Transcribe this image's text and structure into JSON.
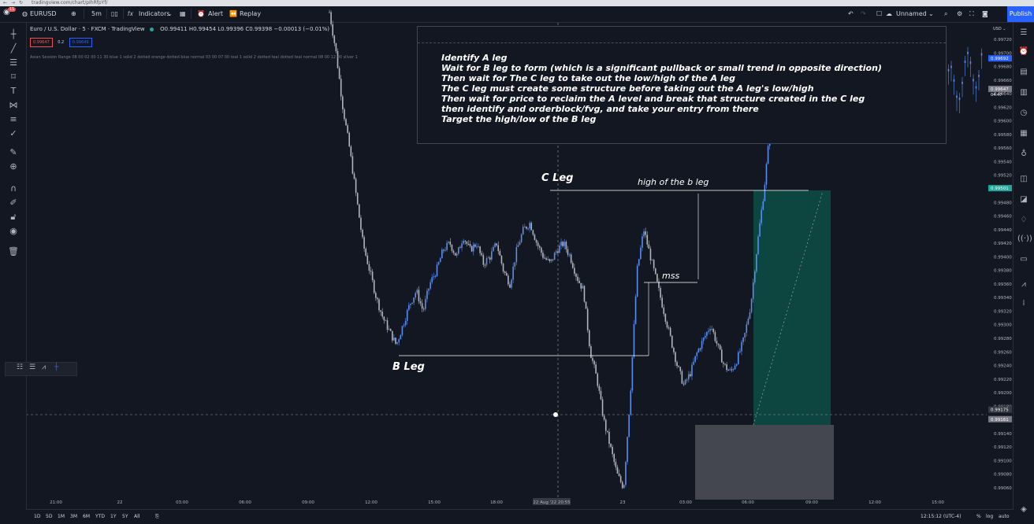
{
  "browser": {
    "url": "tradingview.com/chart/pIhRfpYf/"
  },
  "toolbar": {
    "symbol": "EURUSD",
    "badge": "11",
    "interval": "5m",
    "indicators_label": "Indicators",
    "alert_label": "Alert",
    "replay_label": "Replay",
    "layout_name": "Unnamed",
    "publish_label": "Publish"
  },
  "legend": {
    "title": "Euro / U.S. Dollar · 5 · FXCM · TradingView",
    "ohlc": "O0.99411 H0.99454 L0.99396 C0.99398 −0.00013 (−0.01%)",
    "sell_price": "0.99647",
    "spread": "0.2",
    "buy_price": "0.99649",
    "indicator_text": "Asian Session Range 08 00 02 00 11 30 blue 1 solid 2 dotted orange dotted blue normal 03 00 07 00 teal 1 solid 2 dotted teal dotted teal normal 08 00 12 00 silver 1"
  },
  "notes": {
    "lines": [
      "Identify A leg",
      "Wait for B leg to form (which is a significant pullback or small trend in opposite direction)",
      "Then wait for The C leg to take out the low/high of the A leg",
      "The C leg must create some structure before taking out the A leg's low/high",
      "Then wait for price to reclaim the A level and break that structure created in the C leg",
      "then identify and orderblock/fvg, and take your entry from there",
      "Target the high/low of the B leg"
    ]
  },
  "annotations": {
    "c_leg": "C Leg",
    "b_leg": "B Leg",
    "high_b": "high of the b leg",
    "mss": "mss"
  },
  "chart_data": {
    "type": "candlestick",
    "currency": "USD",
    "y_ticks": [
      "0.99720",
      "0.99700",
      "0.99680",
      "0.99660",
      "0.99640",
      "0.99620",
      "0.99600",
      "0.99580",
      "0.99560",
      "0.99540",
      "0.99520",
      "0.99500",
      "0.99480",
      "0.99460",
      "0.99440",
      "0.99420",
      "0.99400",
      "0.99380",
      "0.99360",
      "0.99340",
      "0.99320",
      "0.99300",
      "0.99280",
      "0.99260",
      "0.99240",
      "0.99220",
      "0.99200",
      "0.99180",
      "0.99160",
      "0.99140",
      "0.99120",
      "0.99100",
      "0.99080",
      "0.99060"
    ],
    "x_ticks": [
      "21:00",
      "22",
      "03:00",
      "06:00",
      "09:00",
      "12:00",
      "15:00",
      "18:00",
      "22 Aug '22  20:55",
      "23",
      "03:00",
      "06:00",
      "09:00",
      "12:00",
      "15:00"
    ],
    "price_labels": {
      "top_right": "0.99692",
      "current": "0.99647",
      "countdown": "04:47",
      "target": "0.99501",
      "crosshair": "0.99175",
      "stop": "0.99161"
    },
    "series": [
      {
        "name": "EURUSD",
        "close_path": [
          0.9976,
          0.997,
          0.9962,
          0.9956,
          0.9949,
          0.9942,
          0.9938,
          0.9934,
          0.9931,
          0.9929,
          0.9927,
          0.993,
          0.9933,
          0.9935,
          0.9932,
          0.9936,
          0.9938,
          0.9941,
          0.9942,
          0.994,
          0.9943,
          0.9941,
          0.9942,
          0.9939,
          0.994,
          0.9942,
          0.9938,
          0.9936,
          0.9941,
          0.9944,
          0.9945,
          0.9942,
          0.994,
          0.9939,
          0.9941,
          0.9942,
          0.994,
          0.9937,
          0.9935,
          0.9926,
          0.9922,
          0.9916,
          0.9912,
          0.9908,
          0.9906,
          0.992,
          0.9938,
          0.9944,
          0.994,
          0.9936,
          0.9932,
          0.9928,
          0.9924,
          0.9921,
          0.9923,
          0.9926,
          0.9928,
          0.993,
          0.9927,
          0.9924,
          0.9923,
          0.9925,
          0.9928,
          0.9933,
          0.9942,
          0.995,
          0.996,
          0.9966,
          0.997,
          0.9969,
          0.9971,
          0.9968,
          0.997,
          0.99692,
          0.99647
        ]
      }
    ]
  },
  "bottom": {
    "ranges": [
      "1D",
      "5D",
      "1M",
      "3M",
      "6M",
      "YTD",
      "1Y",
      "5Y",
      "All"
    ],
    "clock": "12:15:12 (UTC-4)",
    "percent": "%",
    "log": "log",
    "auto": "auto"
  },
  "colors": {
    "background": "#131722",
    "up": "#5b8def",
    "down": "#b2b5be",
    "target_zone": "#0d4f45",
    "stop_zone": "#4a4d55"
  }
}
